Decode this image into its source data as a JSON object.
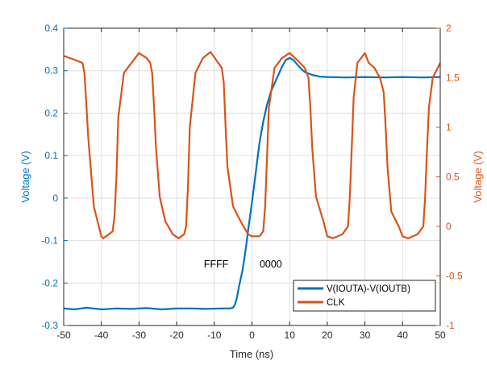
{
  "chart_data": {
    "type": "line",
    "xlabel": "Time (ns)",
    "ylabel_left": "Voltage (V)",
    "ylabel_right": "Voltage (V)",
    "xlim": [
      -50,
      50
    ],
    "ylim_left": [
      -0.3,
      0.4
    ],
    "ylim_right": [
      -1,
      2
    ],
    "x_ticks": [
      -50,
      -40,
      -30,
      -20,
      -10,
      0,
      10,
      20,
      30,
      40,
      50
    ],
    "y_ticks_left": [
      -0.3,
      -0.2,
      -0.1,
      0,
      0.1,
      0.2,
      0.3,
      0.4
    ],
    "y_ticks_right": [
      -1,
      -0.5,
      0,
      0.5,
      1,
      1.5,
      2
    ],
    "grid": true,
    "legend_position": "bottom-right",
    "annotations": [
      {
        "text": "FFFF",
        "x": -9.5,
        "y": -0.163,
        "axis": "left"
      },
      {
        "text": "0000",
        "x": 5,
        "y": -0.163,
        "axis": "left"
      }
    ],
    "series": [
      {
        "name": "V(IOUTA)-V(IOUTB)",
        "axis": "left",
        "color": "#0072BD",
        "x": [
          -50,
          -47,
          -44,
          -40,
          -36,
          -32,
          -28,
          -24,
          -20,
          -16,
          -12,
          -8,
          -6,
          -5,
          -4.5,
          -4,
          -3.5,
          -3,
          -2.5,
          -2,
          -1.5,
          -1,
          0,
          1,
          2,
          3,
          4,
          5,
          6,
          7,
          8,
          9,
          10,
          11,
          12,
          13,
          14,
          16,
          18,
          20,
          25,
          30,
          35,
          40,
          45,
          50
        ],
        "y": [
          -0.26,
          -0.262,
          -0.258,
          -0.262,
          -0.26,
          -0.261,
          -0.259,
          -0.262,
          -0.26,
          -0.26,
          -0.261,
          -0.26,
          -0.26,
          -0.258,
          -0.25,
          -0.235,
          -0.21,
          -0.19,
          -0.17,
          -0.14,
          -0.11,
          -0.075,
          -0.01,
          0.06,
          0.13,
          0.18,
          0.22,
          0.25,
          0.27,
          0.29,
          0.31,
          0.325,
          0.33,
          0.325,
          0.315,
          0.305,
          0.297,
          0.29,
          0.286,
          0.285,
          0.284,
          0.285,
          0.284,
          0.285,
          0.284,
          0.285
        ]
      },
      {
        "name": "CLK",
        "axis": "right",
        "color": "#D95319",
        "x": [
          -50,
          -47,
          -45,
          -44.5,
          -44,
          -43.5,
          -42,
          -41,
          -40,
          -39.5,
          -38,
          -37,
          -36.5,
          -36,
          -35.5,
          -34,
          -32,
          -30,
          -28,
          -27,
          -26.5,
          -26,
          -25.5,
          -24.5,
          -23,
          -21,
          -19.5,
          -18,
          -17.5,
          -17,
          -16.5,
          -15,
          -13,
          -11,
          -9.5,
          -8,
          -7.5,
          -7,
          -6.5,
          -5,
          -3,
          -1,
          0,
          2,
          3,
          3.5,
          4,
          4.5,
          6,
          8,
          10,
          12,
          14,
          15,
          15.5,
          16,
          17,
          19,
          20,
          21.5,
          24,
          25.5,
          26,
          26.5,
          27,
          28,
          29,
          30,
          31,
          32.5,
          34,
          35,
          35.5,
          36,
          37,
          39,
          40,
          41.5,
          44,
          45.5,
          46,
          46.5,
          47,
          48,
          50
        ],
        "y": [
          1.72,
          1.68,
          1.65,
          1.55,
          1.25,
          0.9,
          0.2,
          0.05,
          -0.1,
          -0.12,
          -0.08,
          -0.05,
          0.1,
          0.5,
          1.1,
          1.55,
          1.65,
          1.75,
          1.7,
          1.65,
          1.55,
          1.2,
          0.8,
          0.3,
          0.05,
          -0.08,
          -0.12,
          -0.08,
          0.0,
          0.4,
          1.0,
          1.55,
          1.7,
          1.76,
          1.68,
          1.6,
          1.45,
          1.0,
          0.6,
          0.2,
          0.05,
          -0.08,
          -0.1,
          -0.1,
          -0.05,
          0.2,
          0.7,
          1.2,
          1.6,
          1.7,
          1.75,
          1.68,
          1.6,
          1.5,
          1.2,
          0.8,
          0.3,
          0.05,
          -0.1,
          -0.12,
          -0.08,
          0.0,
          0.3,
          0.8,
          1.3,
          1.65,
          1.7,
          1.75,
          1.65,
          1.6,
          1.5,
          1.35,
          1.0,
          0.6,
          0.15,
          0.0,
          -0.1,
          -0.12,
          -0.08,
          0.0,
          0.3,
          0.8,
          1.2,
          1.5,
          1.65
        ]
      }
    ]
  }
}
